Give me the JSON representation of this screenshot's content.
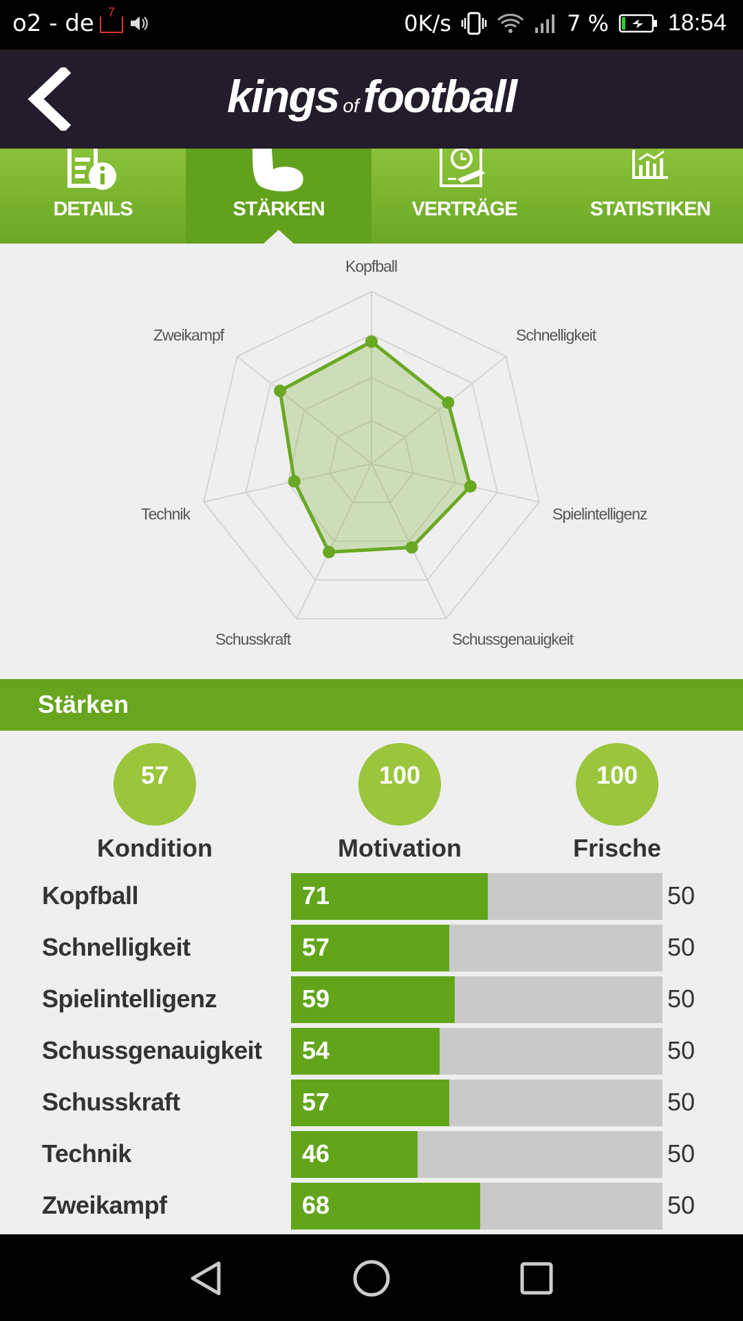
{
  "status_bar": {
    "carrier": "o2 - de",
    "notif_badge": "7",
    "net_speed": "0K/s",
    "battery": "7 %",
    "time": "18:54"
  },
  "header": {
    "logo_kings": "kings",
    "logo_of": "of",
    "logo_football": "football"
  },
  "tabs": [
    {
      "label": "DETAILS",
      "icon": "document-info-icon",
      "active": false
    },
    {
      "label": "STÄRKEN",
      "icon": "muscle-arm-icon",
      "active": true
    },
    {
      "label": "VERTRÄGE",
      "icon": "contract-clock-icon",
      "active": false
    },
    {
      "label": "STATISTIKEN",
      "icon": "bar-chart-icon",
      "active": false
    }
  ],
  "chart_data": {
    "type": "radar",
    "axes": [
      "Kopfball",
      "Schnelligkeit",
      "Spielintelligenz",
      "Schussgenauigkeit",
      "Schusskraft",
      "Technik",
      "Zweikampf"
    ],
    "values": [
      71,
      57,
      59,
      54,
      57,
      46,
      68
    ],
    "rmax": 100,
    "grid_rings": 4,
    "fill_color": "#6aa824"
  },
  "section": {
    "title": "Stärken"
  },
  "circles": [
    {
      "value": "57",
      "label": "Kondition"
    },
    {
      "value": "100",
      "label": "Motivation"
    },
    {
      "value": "100",
      "label": "Frische"
    }
  ],
  "attributes": [
    {
      "name": "Kopfball",
      "value": "71",
      "fraction": 0.53,
      "ref": "50"
    },
    {
      "name": "Schnelligkeit",
      "value": "57",
      "fraction": 0.425,
      "ref": "50"
    },
    {
      "name": "Spielintelligenz",
      "value": "59",
      "fraction": 0.44,
      "ref": "50"
    },
    {
      "name": "Schussgenauigkeit",
      "value": "54",
      "fraction": 0.4,
      "ref": "50"
    },
    {
      "name": "Schusskraft",
      "value": "57",
      "fraction": 0.425,
      "ref": "50"
    },
    {
      "name": "Technik",
      "value": "46",
      "fraction": 0.34,
      "ref": "50"
    },
    {
      "name": "Zweikampf",
      "value": "68",
      "fraction": 0.51,
      "ref": "50"
    }
  ],
  "colors": {
    "header_bg": "#231d2b",
    "green": "#66a51d",
    "light_green": "#9bc53c",
    "track": "#c9c9c9"
  }
}
